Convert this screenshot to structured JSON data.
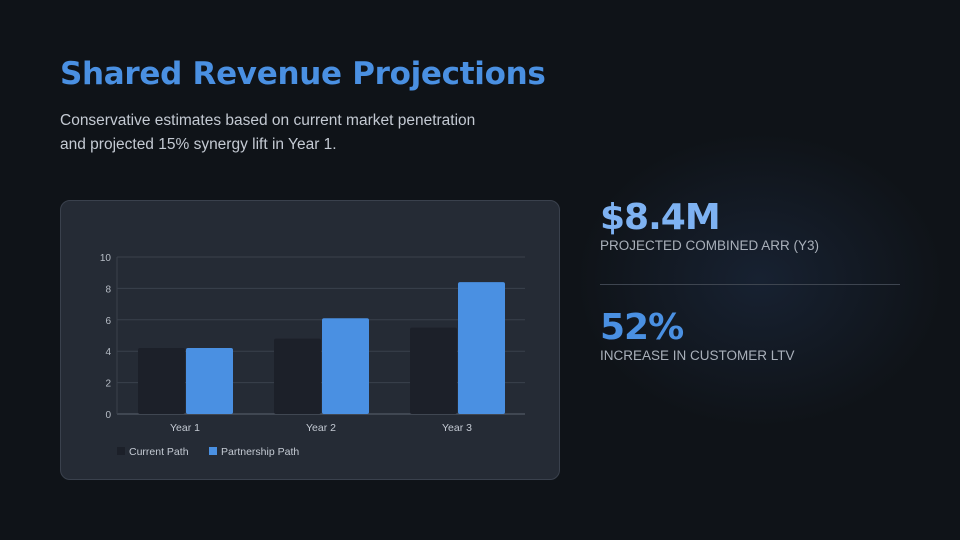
{
  "header": {
    "title": "Shared Revenue Projections",
    "subtitle_line1": "Conservative estimates based on current market penetration",
    "subtitle_line2": "and projected 15% synergy lift in Year 1."
  },
  "stats": [
    {
      "value": "$8.4M",
      "label": "PROJECTED COMBINED ARR (Y3)",
      "color": "#7eb2f2"
    },
    {
      "value": "52%",
      "label": "INCREASE IN CUSTOMER LTV",
      "color": "#4a90e2"
    }
  ],
  "chart_data": {
    "type": "bar",
    "categories": [
      "Year 1",
      "Year 2",
      "Year 3"
    ],
    "series": [
      {
        "name": "Current Path",
        "values": [
          4.2,
          4.8,
          5.5
        ],
        "color": "#1c2029"
      },
      {
        "name": "Partnership Path",
        "values": [
          4.2,
          6.1,
          8.4
        ],
        "color": "#4a90e2"
      }
    ],
    "ylim": [
      0,
      10
    ],
    "yticks": [
      0,
      2,
      4,
      6,
      8,
      10
    ],
    "grid": true,
    "legend": "bottom-left"
  }
}
